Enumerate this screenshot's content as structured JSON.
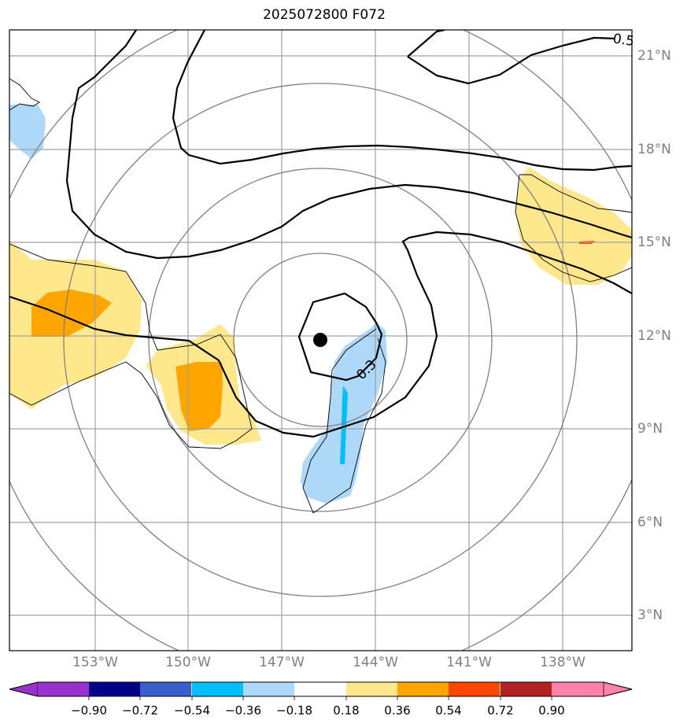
{
  "title": "2025072800 F072",
  "longitude_labels": [
    "153°W",
    "150°W",
    "147°W",
    "144°W",
    "141°W",
    "138°W"
  ],
  "latitude_labels": [
    "21°N",
    "18°N",
    "15°N",
    "12°N",
    "9°N",
    "6°N",
    "3°N"
  ],
  "contour_labels": [
    "0.3",
    "0.5"
  ],
  "colorbar": {
    "ticks": [
      "−0.90",
      "−0.72",
      "−0.54",
      "−0.36",
      "−0.18",
      "0.18",
      "0.36",
      "0.54",
      "0.72",
      "0.90"
    ],
    "colors": {
      "under": "#9932cc",
      "bins": [
        "#00008b",
        "#3a5fcd",
        "#00bfff",
        "#add8f8",
        "#ffffff",
        "#ffe88c",
        "#ffa500",
        "#ff4500",
        "#b22222"
      ],
      "over": "#ff82ab"
    }
  },
  "storm_center": {
    "lon": "145.8°W",
    "lat": "11.8°N"
  },
  "fill_colors": {
    "light_yellow": "#ffe88c",
    "orange": "#ffa500",
    "light_blue": "#add8f8",
    "cyan": "#00bfff",
    "red_orange": "#ff4500"
  }
}
